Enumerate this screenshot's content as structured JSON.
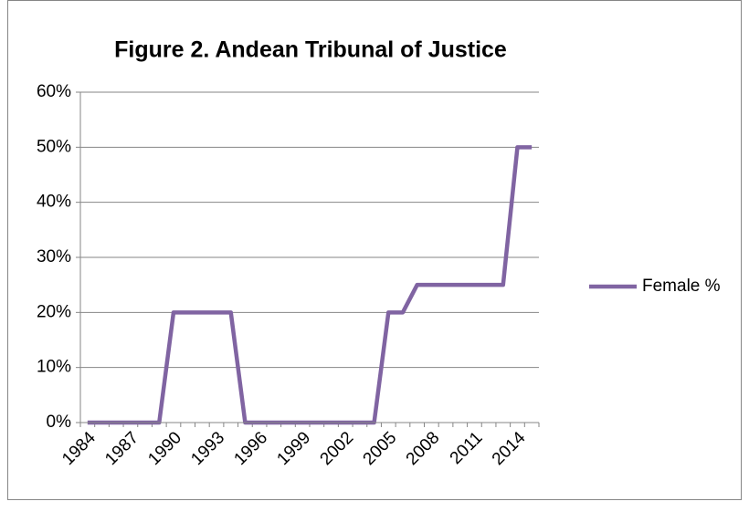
{
  "chart_data": {
    "type": "line",
    "title": "Figure 2. Andean Tribunal of Justice",
    "categories": [
      "1984",
      null,
      null,
      "1987",
      null,
      null,
      "1990",
      null,
      null,
      "1993",
      null,
      null,
      "1996",
      null,
      null,
      "1999",
      null,
      null,
      "2002",
      null,
      null,
      "2005",
      null,
      null,
      "2008",
      null,
      null,
      "2011",
      null,
      null,
      "2014",
      null
    ],
    "series": [
      {
        "name": "Female %",
        "color": "#8064a2",
        "values": [
          0,
          0,
          0,
          0,
          0,
          0,
          20,
          20,
          20,
          20,
          20,
          0,
          0,
          0,
          0,
          0,
          0,
          0,
          0,
          0,
          0,
          20,
          20,
          25,
          25,
          25,
          25,
          25,
          25,
          25,
          50,
          50
        ]
      }
    ],
    "ylim": [
      0,
      60
    ],
    "yticks": [
      {
        "value": 0,
        "label": "0%"
      },
      {
        "value": 10,
        "label": "10%"
      },
      {
        "value": 20,
        "label": "20%"
      },
      {
        "value": 30,
        "label": "30%"
      },
      {
        "value": 40,
        "label": "40%"
      },
      {
        "value": 50,
        "label": "50%"
      },
      {
        "value": 60,
        "label": "60%"
      }
    ],
    "grid": true,
    "legend": "right"
  }
}
